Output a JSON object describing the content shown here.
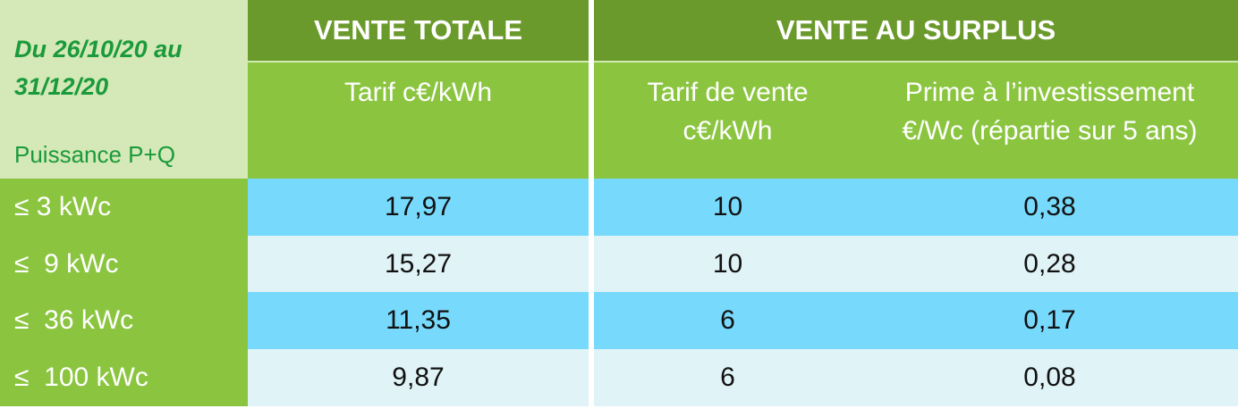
{
  "corner": {
    "period_line1": "Du 26/10/20 au",
    "period_line2": "31/12/20",
    "power_label": "Puissance P+Q"
  },
  "groups": {
    "vente_totale": "VENTE TOTALE",
    "vente_surplus": "VENTE AU SURPLUS"
  },
  "subheaders": {
    "tarif_total": "Tarif c€/kWh",
    "tarif_vente_line1": "Tarif de vente",
    "tarif_vente_line2": "c€/kWh",
    "prime_line1": "Prime à l’investissement",
    "prime_line2": "€/Wc (répartie sur 5 ans)"
  },
  "rows": [
    {
      "label": "≤ 3 kWc",
      "tarif_total": "17,97",
      "tarif_vente": "10",
      "prime": "0,38"
    },
    {
      "label": "≤  9 kWc",
      "tarif_total": "15,27",
      "tarif_vente": "10",
      "prime": "0,28"
    },
    {
      "label": "≤  36 kWc",
      "tarif_total": "11,35",
      "tarif_vente": "6",
      "prime": "0,17"
    },
    {
      "label": "≤  100 kWc",
      "tarif_total": "9,87",
      "tarif_vente": "6",
      "prime": "0,08"
    }
  ],
  "colors": {
    "group_header": "#6b9a2c",
    "sub_header": "#8bc540",
    "corner": "#d4e8b8",
    "corner_text": "#1a9a3a",
    "band_a": "#77d9fb",
    "band_b": "#e0f3f7"
  }
}
